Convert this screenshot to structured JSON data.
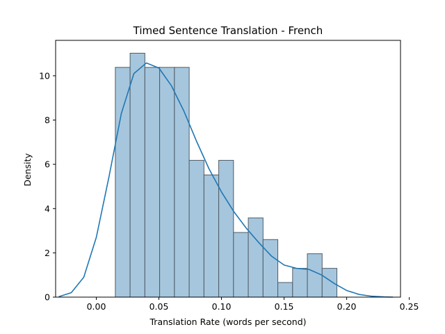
{
  "chart_data": {
    "type": "histogram",
    "title": "Timed Sentence Translation - French",
    "xlabel": "Translation Rate (words per second)",
    "ylabel": "Density",
    "xlim": [
      -0.0325,
      0.243
    ],
    "ylim": [
      0,
      11.6
    ],
    "xticks": [
      0.0,
      0.05,
      0.1,
      0.15,
      0.2,
      0.25
    ],
    "xtick_labels": [
      "0.00",
      "0.05",
      "0.10",
      "0.15",
      "0.20",
      "0.25"
    ],
    "yticks": [
      0,
      2,
      4,
      6,
      8,
      10
    ],
    "ytick_labels": [
      "0",
      "2",
      "4",
      "6",
      "8",
      "10"
    ],
    "bin_edges": [
      0.0152,
      0.027,
      0.0388,
      0.0506,
      0.0624,
      0.0742,
      0.086,
      0.0978,
      0.1096,
      0.1214,
      0.1332,
      0.145,
      0.1568,
      0.1686,
      0.1804,
      0.1922
    ],
    "densities": [
      10.38,
      11.02,
      10.38,
      10.38,
      10.38,
      6.18,
      5.52,
      6.18,
      2.92,
      3.58,
      2.6,
      0.66,
      1.3,
      1.96,
      1.3
    ],
    "kde": {
      "x": [
        -0.03,
        -0.02,
        -0.01,
        0.0,
        0.01,
        0.02,
        0.03,
        0.04,
        0.05,
        0.06,
        0.07,
        0.08,
        0.09,
        0.1,
        0.11,
        0.12,
        0.13,
        0.14,
        0.15,
        0.16,
        0.17,
        0.18,
        0.19,
        0.2,
        0.21,
        0.22,
        0.23,
        0.237
      ],
      "y": [
        0.02,
        0.2,
        0.9,
        2.7,
        5.4,
        8.3,
        10.1,
        10.58,
        10.35,
        9.55,
        8.4,
        7.05,
        5.8,
        4.75,
        3.85,
        3.1,
        2.45,
        1.85,
        1.45,
        1.3,
        1.25,
        1.0,
        0.62,
        0.3,
        0.12,
        0.04,
        0.01,
        0.0
      ]
    },
    "colors": {
      "bar_fill": "#a6c6dd",
      "bar_edge": "#4f5b66",
      "kde_line": "#1f77b4"
    }
  }
}
